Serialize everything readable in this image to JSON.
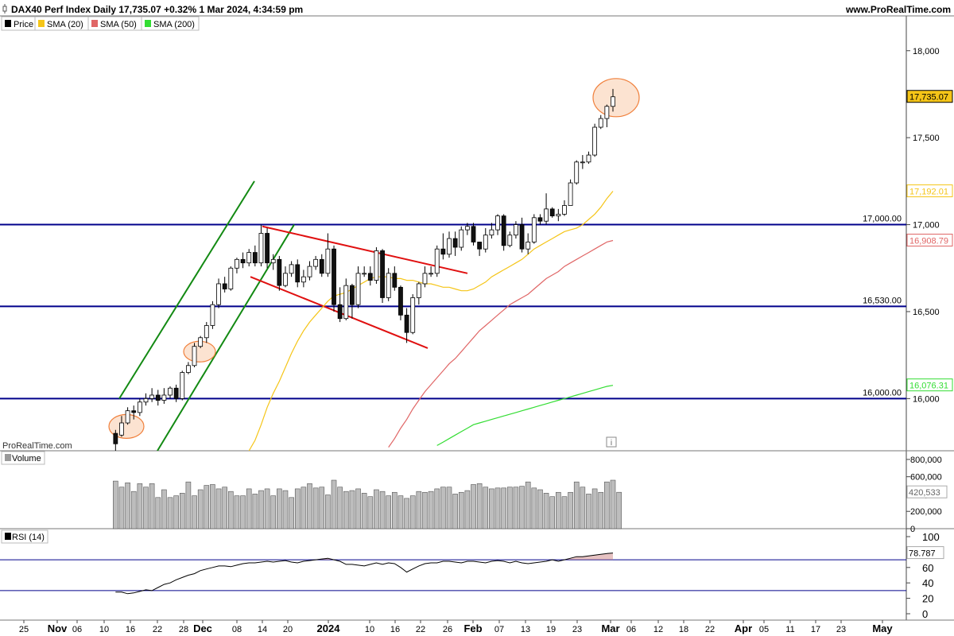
{
  "header": {
    "title": "DAX40 Perf Index Daily 17,735.07 +0.32% 1 Mar 2024, 4:34:59 pm",
    "site": "www.ProRealTime.com",
    "watermark": "ProRealTime.com",
    "info_icon": "info-icon",
    "chart_icon": "candlestick-icon"
  },
  "legend": [
    {
      "label": "Price",
      "color": "#000000"
    },
    {
      "label": "SMA (20)",
      "color": "#f5c518"
    },
    {
      "label": "SMA (50)",
      "color": "#e06666"
    },
    {
      "label": "SMA (200)",
      "color": "#33dd33"
    }
  ],
  "volume_panel": {
    "label": "Volume",
    "ticks": [
      "800,000",
      "600,000",
      "400,000",
      "200,000",
      "0"
    ],
    "last": "420,533"
  },
  "rsi_panel": {
    "label": "RSI (14)",
    "ticks": [
      "100",
      "80",
      "60",
      "40",
      "20",
      "0"
    ],
    "last": "78.787"
  },
  "price_ticks": [
    "18,000",
    "17,500",
    "17,000",
    "16,500",
    "16,000"
  ],
  "x_ticks": [
    "25",
    "Nov",
    "06",
    "10",
    "16",
    "22",
    "28",
    "Dec",
    "08",
    "14",
    "20",
    "2024",
    "10",
    "16",
    "22",
    "26",
    "Feb",
    "07",
    "13",
    "19",
    "23",
    "Mar",
    "06",
    "12",
    "18",
    "22",
    "Apr",
    "05",
    "11",
    "17",
    "23",
    "May"
  ],
  "chart_data": {
    "type": "candlestick",
    "title": "DAX40 Perf Index Daily",
    "y_range": [
      15700,
      18200
    ],
    "horizontal_levels": [
      {
        "label": "17,000.00",
        "value": 17000,
        "color": "#00008b"
      },
      {
        "label": "16,530.00",
        "value": 16530,
        "color": "#00008b"
      },
      {
        "label": "16,000.00",
        "value": 16000,
        "color": "#00008b"
      }
    ],
    "price_tags": [
      {
        "label": "17,735.07",
        "value": 17735.07,
        "series": "Price",
        "color": "#000000",
        "fill": "#f5c518"
      },
      {
        "label": "17,192.01",
        "value": 17192.01,
        "series": "SMA (20)",
        "color": "#f5c518"
      },
      {
        "label": "16,908.79",
        "value": 16908.79,
        "series": "SMA (50)",
        "color": "#e06666"
      },
      {
        "label": "16,076.31",
        "value": 16076.31,
        "series": "SMA (200)",
        "color": "#33dd33"
      }
    ],
    "candles": [
      [
        15800,
        15740,
        15820,
        15700
      ],
      [
        15790,
        15860,
        15900,
        15780
      ],
      [
        15860,
        15930,
        15950,
        15850
      ],
      [
        15930,
        15920,
        15960,
        15880
      ],
      [
        15920,
        15980,
        16000,
        15900
      ],
      [
        15980,
        16000,
        16030,
        15960
      ],
      [
        16000,
        16020,
        16060,
        15980
      ],
      [
        16020,
        15990,
        16050,
        15960
      ],
      [
        15990,
        16020,
        16060,
        15970
      ],
      [
        16020,
        16060,
        16070,
        16000
      ],
      [
        16060,
        16000,
        16080,
        15980
      ],
      [
        16000,
        16150,
        16160,
        15990
      ],
      [
        16150,
        16190,
        16210,
        16140
      ],
      [
        16190,
        16300,
        16320,
        16180
      ],
      [
        16300,
        16350,
        16360,
        16290
      ],
      [
        16350,
        16420,
        16440,
        16320
      ],
      [
        16420,
        16540,
        16560,
        16400
      ],
      [
        16540,
        16660,
        16690,
        16520
      ],
      [
        16660,
        16630,
        16700,
        16610
      ],
      [
        16630,
        16750,
        16760,
        16620
      ],
      [
        16750,
        16800,
        16810,
        16720
      ],
      [
        16800,
        16780,
        16840,
        16750
      ],
      [
        16780,
        16840,
        16860,
        16760
      ],
      [
        16840,
        16780,
        16880,
        16760
      ],
      [
        16780,
        16950,
        17000,
        16760
      ],
      [
        16950,
        16780,
        16980,
        16750
      ],
      [
        16780,
        16800,
        16830,
        16740
      ],
      [
        16800,
        16650,
        16820,
        16620
      ],
      [
        16650,
        16720,
        16760,
        16640
      ],
      [
        16720,
        16770,
        16790,
        16700
      ],
      [
        16770,
        16670,
        16800,
        16640
      ],
      [
        16670,
        16700,
        16740,
        16640
      ],
      [
        16700,
        16760,
        16790,
        16680
      ],
      [
        16760,
        16800,
        16820,
        16740
      ],
      [
        16800,
        16720,
        16830,
        16700
      ],
      [
        16720,
        16860,
        16950,
        16700
      ],
      [
        16860,
        16540,
        16880,
        16500
      ],
      [
        16540,
        16460,
        16640,
        16440
      ],
      [
        16460,
        16650,
        16690,
        16450
      ],
      [
        16650,
        16540,
        16660,
        16460
      ],
      [
        16540,
        16720,
        16760,
        16520
      ],
      [
        16720,
        16720,
        16760,
        16700
      ],
      [
        16720,
        16680,
        16760,
        16650
      ],
      [
        16680,
        16850,
        16870,
        16660
      ],
      [
        16850,
        16580,
        16860,
        16550
      ],
      [
        16580,
        16720,
        16750,
        16560
      ],
      [
        16720,
        16640,
        16760,
        16620
      ],
      [
        16640,
        16480,
        16650,
        16450
      ],
      [
        16480,
        16380,
        16520,
        16320
      ],
      [
        16380,
        16580,
        16600,
        16370
      ],
      [
        16580,
        16660,
        16670,
        16540
      ],
      [
        16660,
        16720,
        16760,
        16640
      ],
      [
        16720,
        16720,
        16760,
        16700
      ],
      [
        16720,
        16860,
        16880,
        16700
      ],
      [
        16860,
        16830,
        16950,
        16800
      ],
      [
        16830,
        16920,
        16960,
        16810
      ],
      [
        16920,
        16870,
        16960,
        16820
      ],
      [
        16870,
        16970,
        16990,
        16850
      ],
      [
        16970,
        16990,
        17010,
        16940
      ],
      [
        16990,
        16900,
        17010,
        16880
      ],
      [
        16900,
        16860,
        16900,
        16820
      ],
      [
        16860,
        16940,
        16980,
        16840
      ],
      [
        16940,
        16970,
        17010,
        16920
      ],
      [
        16970,
        17050,
        17060,
        16940
      ],
      [
        17050,
        16880,
        17060,
        16850
      ],
      [
        16880,
        16940,
        16960,
        16870
      ],
      [
        16940,
        17000,
        17020,
        16920
      ],
      [
        17000,
        16860,
        17040,
        16840
      ],
      [
        16860,
        16900,
        16950,
        16830
      ],
      [
        16900,
        17040,
        17060,
        16890
      ],
      [
        17040,
        17020,
        17060,
        17000
      ],
      [
        17020,
        17090,
        17180,
        17000
      ],
      [
        17090,
        17050,
        17100,
        17040
      ],
      [
        17050,
        17060,
        17090,
        17020
      ],
      [
        17060,
        17110,
        17140,
        17050
      ],
      [
        17110,
        17240,
        17260,
        17180
      ],
      [
        17240,
        17360,
        17370,
        17230
      ],
      [
        17360,
        17360,
        17400,
        17320
      ],
      [
        17360,
        17400,
        17420,
        17350
      ],
      [
        17400,
        17560,
        17580,
        17390
      ],
      [
        17560,
        17610,
        17630,
        17550
      ],
      [
        17610,
        17680,
        17690,
        17560
      ],
      [
        17680,
        17735,
        17780,
        17650
      ]
    ],
    "volume": [
      550000,
      480000,
      530000,
      430000,
      520000,
      480000,
      520000,
      360000,
      450000,
      360000,
      380000,
      410000,
      540000,
      380000,
      450000,
      500000,
      510000,
      460000,
      480000,
      430000,
      380000,
      380000,
      460000,
      400000,
      440000,
      460000,
      380000,
      460000,
      440000,
      360000,
      460000,
      480000,
      520000,
      470000,
      480000,
      390000,
      560000,
      480000,
      430000,
      440000,
      460000,
      410000,
      370000,
      450000,
      430000,
      380000,
      420000,
      380000,
      350000,
      380000,
      430000,
      420000,
      430000,
      460000,
      480000,
      480000,
      400000,
      420000,
      440000,
      510000,
      520000,
      480000,
      460000,
      470000,
      470000,
      480000,
      480000,
      490000,
      540000,
      470000,
      450000,
      410000,
      370000,
      420000,
      370000,
      420000,
      540000,
      480000,
      400000,
      460000,
      420000,
      540000,
      560000,
      420533
    ],
    "rsi": [
      28,
      28,
      26,
      27,
      29,
      31,
      30,
      34,
      38,
      40,
      44,
      47,
      50,
      52,
      56,
      58,
      60,
      62,
      62,
      61,
      63,
      65,
      66,
      66,
      67,
      68,
      67,
      68,
      69,
      67,
      66,
      68,
      69,
      70,
      71,
      72,
      70,
      68,
      64,
      64,
      63,
      62,
      64,
      66,
      64,
      66,
      65,
      60,
      54,
      58,
      62,
      65,
      66,
      66,
      68,
      68,
      67,
      66,
      68,
      68,
      67,
      66,
      68,
      69,
      68,
      66,
      68,
      66,
      65,
      66,
      67,
      68,
      70,
      68,
      70,
      72,
      74,
      74,
      75,
      76,
      77,
      78,
      78.787
    ],
    "sma20": [
      null,
      null,
      null,
      null,
      null,
      null,
      null,
      null,
      null,
      null,
      null,
      null,
      null,
      null,
      15700,
      15760,
      15850,
      15950,
      16030,
      16100,
      16180,
      16260,
      16330,
      16390,
      16440,
      16480,
      16520,
      16560,
      16590,
      16600,
      16610,
      16630,
      16650,
      16670,
      16690,
      16700,
      16700,
      16700,
      16690,
      16690,
      16680,
      16680,
      16670,
      16660,
      16660,
      16650,
      16640,
      16640,
      16630,
      16620,
      16620,
      16630,
      16650,
      16670,
      16700,
      16720,
      16740,
      16760,
      16780,
      16800,
      16830,
      16860,
      16880,
      16900,
      16920,
      16940,
      16960,
      16970,
      16980,
      17000,
      17030,
      17060,
      17100,
      17150,
      17192.01
    ],
    "sma50": [
      null,
      null,
      null,
      null,
      null,
      null,
      null,
      null,
      null,
      null,
      null,
      null,
      null,
      null,
      null,
      null,
      null,
      null,
      null,
      null,
      null,
      null,
      null,
      null,
      null,
      null,
      null,
      null,
      null,
      null,
      null,
      15720,
      15770,
      15830,
      15880,
      15940,
      15990,
      16040,
      16080,
      16120,
      16160,
      16200,
      16230,
      16270,
      16310,
      16350,
      16390,
      16420,
      16450,
      16480,
      16510,
      16540,
      16560,
      16580,
      16600,
      16630,
      16660,
      16690,
      16710,
      16730,
      16760,
      16780,
      16800,
      16820,
      16840,
      16860,
      16880,
      16900,
      16908.79
    ],
    "sma200": [
      null,
      null,
      null,
      null,
      null,
      null,
      null,
      null,
      null,
      null,
      null,
      null,
      null,
      null,
      null,
      null,
      null,
      null,
      null,
      null,
      null,
      null,
      null,
      null,
      null,
      null,
      null,
      null,
      null,
      null,
      null,
      null,
      null,
      null,
      15730,
      15750,
      15770,
      15790,
      15810,
      15830,
      15850,
      15860,
      15870,
      15880,
      15890,
      15900,
      15910,
      15920,
      15930,
      15940,
      15950,
      15960,
      15970,
      15980,
      15990,
      16000,
      16010,
      16020,
      16030,
      16040,
      16050,
      16060,
      16070,
      16076.31
    ]
  }
}
